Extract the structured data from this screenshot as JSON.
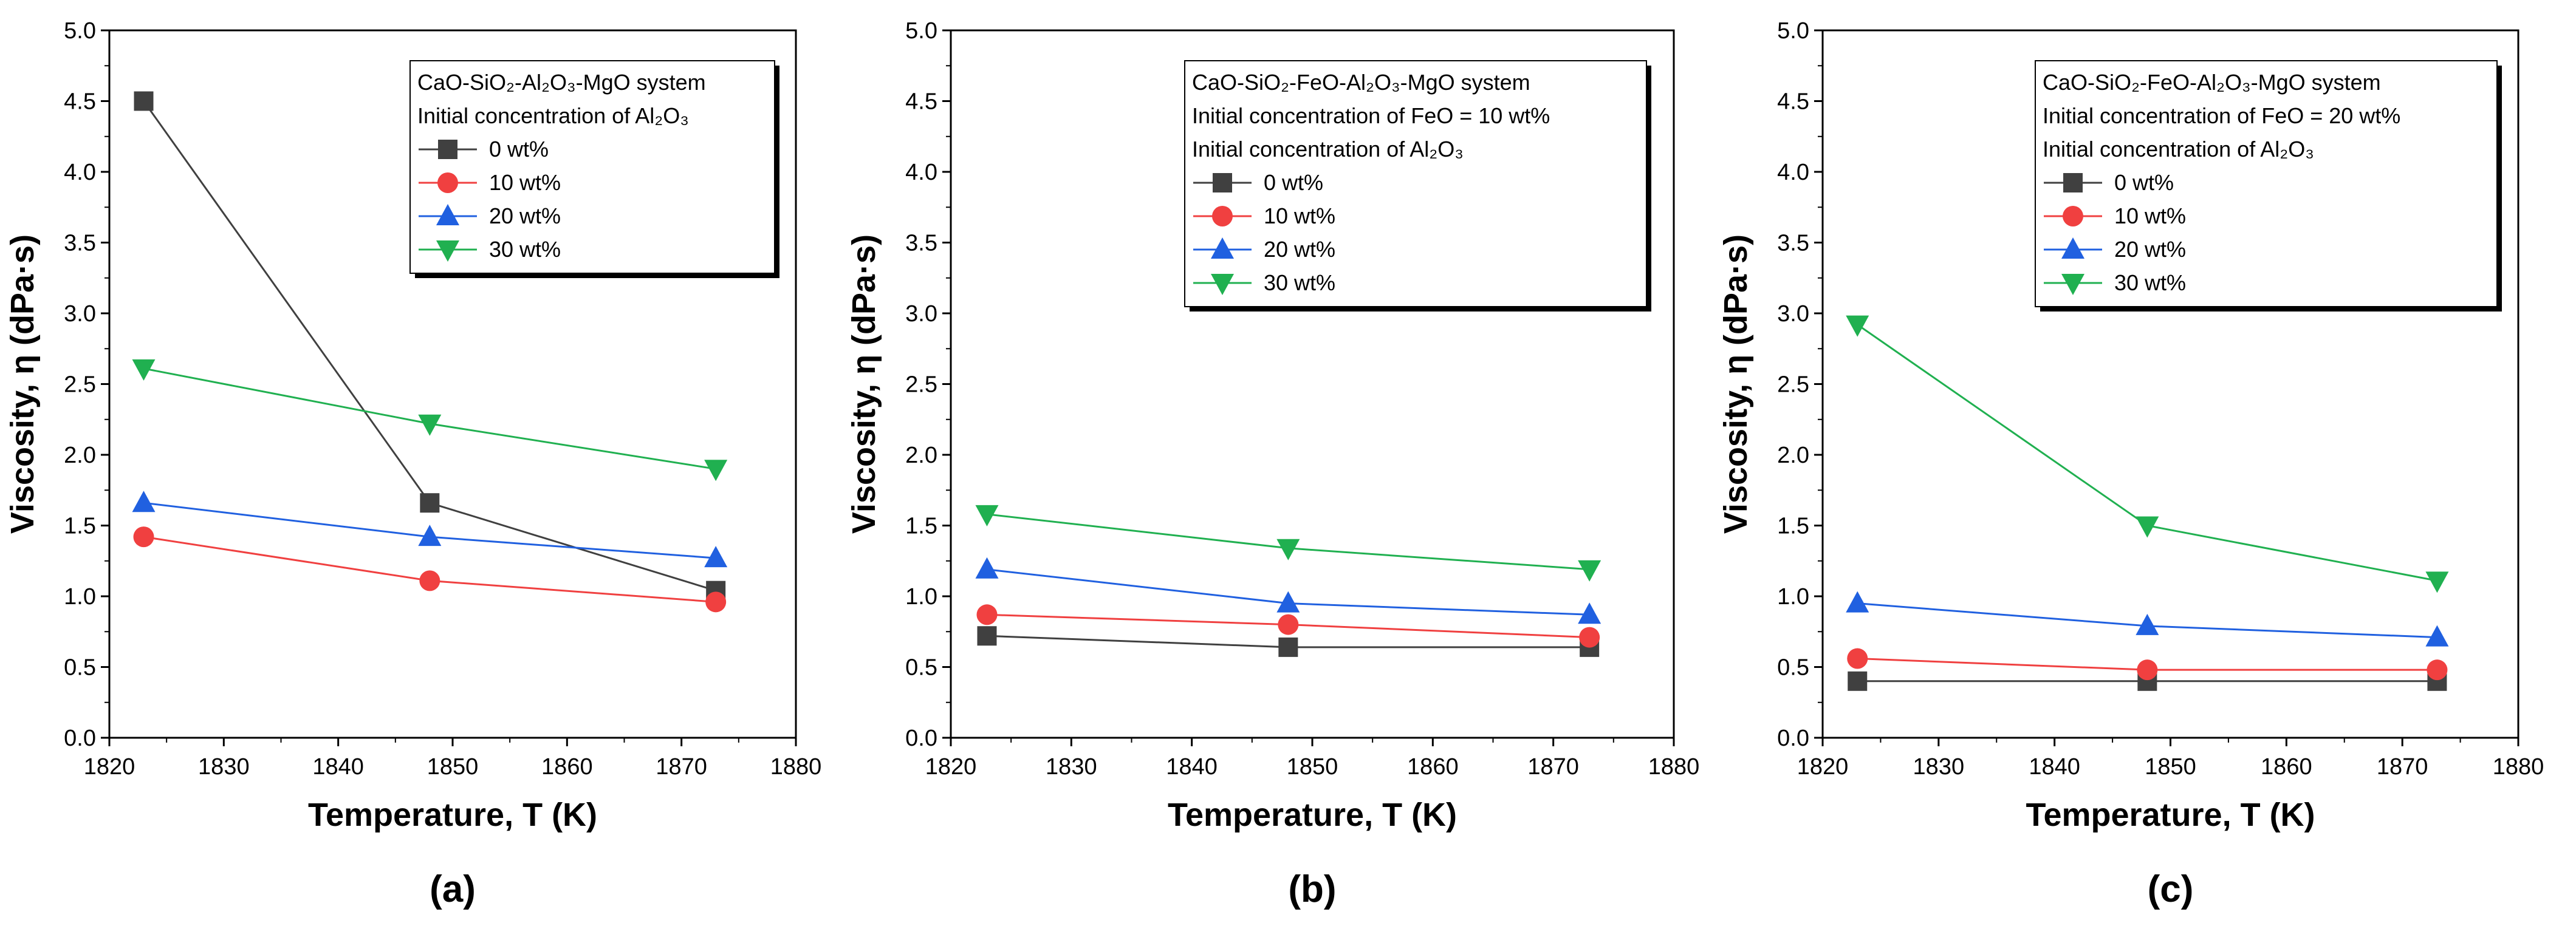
{
  "chart_data": [
    {
      "type": "line",
      "panel_label": "(a)",
      "xlabel": "Temperature, T (K)",
      "ylabel": "Viscosity, η (dPa·s)",
      "xlim": [
        1820,
        1880
      ],
      "ylim": [
        0,
        5
      ],
      "x_ticks": [
        "1820",
        "1830",
        "1840",
        "1850",
        "1860",
        "1870",
        "1880"
      ],
      "y_ticks": [
        "0.0",
        "0.5",
        "1.0",
        "1.5",
        "2.0",
        "2.5",
        "3.0",
        "3.5",
        "4.0",
        "4.5",
        "5.0"
      ],
      "x": [
        1823,
        1848,
        1873
      ],
      "legend_lines": [
        "CaO-SiO₂-Al₂O₃-MgO system",
        "Initial concentration of Al₂O₃"
      ],
      "series": [
        {
          "name": "0 wt%",
          "values": [
            4.5,
            1.66,
            1.04
          ],
          "color": "#404040",
          "marker": "square"
        },
        {
          "name": "10 wt%",
          "values": [
            1.42,
            1.11,
            0.96
          ],
          "color": "#f04040",
          "marker": "circle"
        },
        {
          "name": "20 wt%",
          "values": [
            1.66,
            1.42,
            1.27
          ],
          "color": "#2060e0",
          "marker": "triangle-up"
        },
        {
          "name": "30 wt%",
          "values": [
            2.61,
            2.22,
            1.9
          ],
          "color": "#20b050",
          "marker": "triangle-down"
        }
      ]
    },
    {
      "type": "line",
      "panel_label": "(b)",
      "xlabel": "Temperature, T (K)",
      "ylabel": "Viscosity, η (dPa·s)",
      "xlim": [
        1820,
        1880
      ],
      "ylim": [
        0,
        5
      ],
      "x_ticks": [
        "1820",
        "1830",
        "1840",
        "1850",
        "1860",
        "1870",
        "1880"
      ],
      "y_ticks": [
        "0.0",
        "0.5",
        "1.0",
        "1.5",
        "2.0",
        "2.5",
        "3.0",
        "3.5",
        "4.0",
        "4.5",
        "5.0"
      ],
      "x": [
        1823,
        1848,
        1873
      ],
      "legend_lines": [
        "CaO-SiO₂-FeO-Al₂O₃-MgO system",
        "Initial concentration of FeO = 10 wt%",
        "Initial concentration of Al₂O₃"
      ],
      "series": [
        {
          "name": "0 wt%",
          "values": [
            0.72,
            0.64,
            0.64
          ],
          "color": "#404040",
          "marker": "square"
        },
        {
          "name": "10 wt%",
          "values": [
            0.87,
            0.8,
            0.71
          ],
          "color": "#f04040",
          "marker": "circle"
        },
        {
          "name": "20 wt%",
          "values": [
            1.19,
            0.95,
            0.87
          ],
          "color": "#2060e0",
          "marker": "triangle-up"
        },
        {
          "name": "30 wt%",
          "values": [
            1.58,
            1.34,
            1.19
          ],
          "color": "#20b050",
          "marker": "triangle-down"
        }
      ]
    },
    {
      "type": "line",
      "panel_label": "(c)",
      "xlabel": "Temperature, T (K)",
      "ylabel": "Viscosity, η (dPa·s)",
      "xlim": [
        1820,
        1880
      ],
      "ylim": [
        0,
        5
      ],
      "x_ticks": [
        "1820",
        "1830",
        "1840",
        "1850",
        "1860",
        "1870",
        "1880"
      ],
      "y_ticks": [
        "0.0",
        "0.5",
        "1.0",
        "1.5",
        "2.0",
        "2.5",
        "3.0",
        "3.5",
        "4.0",
        "4.5",
        "5.0"
      ],
      "x": [
        1823,
        1848,
        1873
      ],
      "legend_lines": [
        "CaO-SiO₂-FeO-Al₂O₃-MgO system",
        "Initial concentration of FeO = 20 wt%",
        "Initial concentration of Al₂O₃"
      ],
      "series": [
        {
          "name": "0 wt%",
          "values": [
            0.4,
            0.4,
            0.4
          ],
          "color": "#404040",
          "marker": "square"
        },
        {
          "name": "10 wt%",
          "values": [
            0.56,
            0.48,
            0.48
          ],
          "color": "#f04040",
          "marker": "circle"
        },
        {
          "name": "20 wt%",
          "values": [
            0.95,
            0.79,
            0.71
          ],
          "color": "#2060e0",
          "marker": "triangle-up"
        },
        {
          "name": "30 wt%",
          "values": [
            2.92,
            1.5,
            1.11
          ],
          "color": "#20b050",
          "marker": "triangle-down"
        }
      ]
    }
  ]
}
